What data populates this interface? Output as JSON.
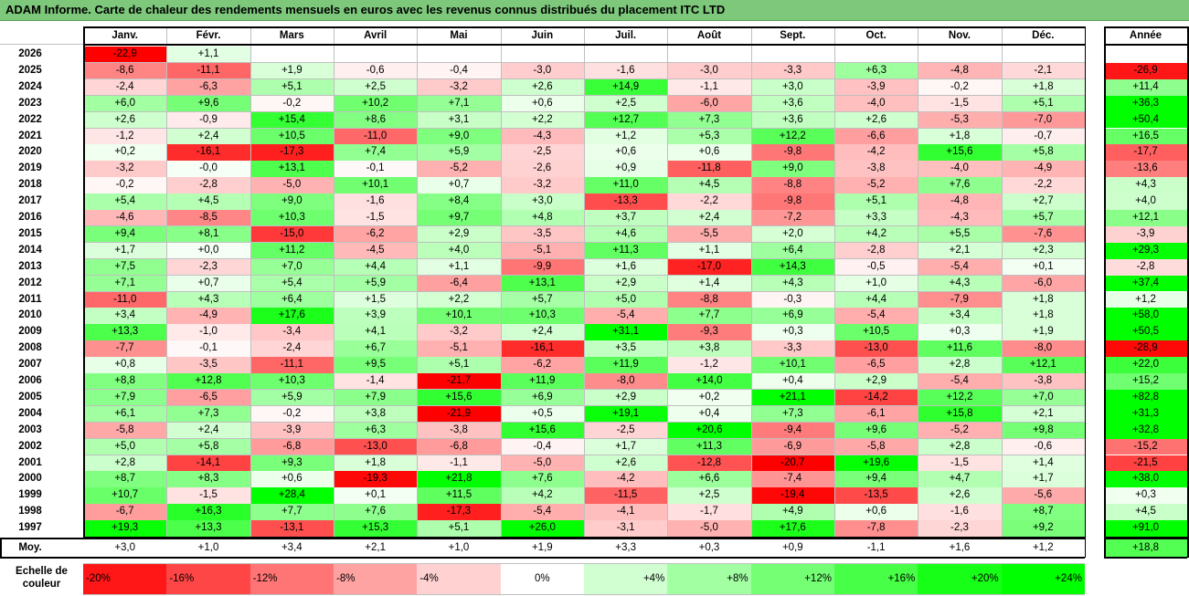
{
  "title": "ADAM Informe. Carte de chaleur des rendements mensuels en euros avec les revenus connus distribués du placement ITC LTD",
  "colors": {
    "title_bg": "#7dc87b",
    "neg_max": "#ff0000",
    "pos_max": "#00ff00",
    "neutral": "#ffffff"
  },
  "chart_data": {
    "type": "heatmap",
    "title": "ADAM Informe. Carte de chaleur des rendements mensuels en euros avec les revenus connus distribués du placement ITC LTD",
    "months": [
      "Janv.",
      "Févr.",
      "Mars",
      "Avril",
      "Mai",
      "Juin",
      "Juil.",
      "Août",
      "Sept.",
      "Oct.",
      "Nov.",
      "Déc."
    ],
    "year_header": "Année",
    "rows": [
      {
        "year": "2026",
        "values": [
          "-22,9",
          "+1,1",
          "",
          "",
          "",
          "",
          "",
          "",
          "",
          "",
          "",
          ""
        ],
        "annual": ""
      },
      {
        "year": "2025",
        "values": [
          "-8,6",
          "-11,1",
          "+1,9",
          "-0,6",
          "-0,4",
          "-3,0",
          "-1,6",
          "-3,0",
          "-3,3",
          "+6,3",
          "-4,8",
          "-2,1"
        ],
        "annual": "-26,9"
      },
      {
        "year": "2024",
        "values": [
          "-2,4",
          "-6,3",
          "+5,1",
          "+2,5",
          "-3,2",
          "+2,6",
          "+14,9",
          "-1,1",
          "+3,0",
          "-3,9",
          "-0,2",
          "+1,8"
        ],
        "annual": "+11,4"
      },
      {
        "year": "2023",
        "values": [
          "+6,0",
          "+9,6",
          "-0,2",
          "+10,2",
          "+7,1",
          "+0,6",
          "+2,5",
          "-6,0",
          "+3,6",
          "-4,0",
          "-1,5",
          "+5,1"
        ],
        "annual": "+36,3"
      },
      {
        "year": "2022",
        "values": [
          "+2,6",
          "-0,9",
          "+15,4",
          "+8,6",
          "+3,1",
          "+2,2",
          "+12,7",
          "+7,3",
          "+3,6",
          "+2,6",
          "-5,3",
          "-7,0"
        ],
        "annual": "+50,4"
      },
      {
        "year": "2021",
        "values": [
          "-1,2",
          "+2,4",
          "+10,5",
          "-11,0",
          "+9,0",
          "-4,3",
          "+1,2",
          "+5,3",
          "+12,2",
          "-6,6",
          "+1,8",
          "-0,7"
        ],
        "annual": "+16,5"
      },
      {
        "year": "2020",
        "values": [
          "+0,2",
          "-16,1",
          "-17,3",
          "+7,4",
          "+5,9",
          "-2,5",
          "+0,6",
          "+0,6",
          "-9,8",
          "-4,2",
          "+15,6",
          "+5,8"
        ],
        "annual": "-17,7"
      },
      {
        "year": "2019",
        "values": [
          "-3,2",
          "-0,0",
          "+13,1",
          "-0,1",
          "-5,2",
          "-2,6",
          "+0,9",
          "-11,8",
          "+9,0",
          "-3,8",
          "-4,0",
          "-4,9"
        ],
        "annual": "-13,6"
      },
      {
        "year": "2018",
        "values": [
          "-0,2",
          "-2,8",
          "-5,0",
          "+10,1",
          "+0,7",
          "-3,2",
          "+11,0",
          "+4,5",
          "-8,8",
          "-5,2",
          "+7,6",
          "-2,2"
        ],
        "annual": "+4,3"
      },
      {
        "year": "2017",
        "values": [
          "+5,4",
          "+4,5",
          "+9,0",
          "-1,6",
          "+8,4",
          "+3,0",
          "-13,3",
          "-2,2",
          "-9,8",
          "+5,1",
          "-4,8",
          "+2,7"
        ],
        "annual": "+4,0"
      },
      {
        "year": "2016",
        "values": [
          "-4,6",
          "-8,5",
          "+10,3",
          "-1,5",
          "+9,7",
          "+4,8",
          "+3,7",
          "+2,4",
          "-7,2",
          "+3,3",
          "-4,3",
          "+5,7"
        ],
        "annual": "+12,1"
      },
      {
        "year": "2015",
        "values": [
          "+9,4",
          "+8,1",
          "-15,0",
          "-6,2",
          "+2,9",
          "-3,5",
          "+4,6",
          "-5,5",
          "+2,0",
          "+4,2",
          "+5,5",
          "-7,6"
        ],
        "annual": "-3,9"
      },
      {
        "year": "2014",
        "values": [
          "+1,7",
          "+0,0",
          "+11,2",
          "-4,5",
          "+4,0",
          "-5,1",
          "+11,3",
          "+1,1",
          "+6,4",
          "-2,8",
          "+2,1",
          "+2,3"
        ],
        "annual": "+29,3"
      },
      {
        "year": "2013",
        "values": [
          "+7,5",
          "-2,3",
          "+7,0",
          "+4,4",
          "+1,1",
          "-9,9",
          "+1,6",
          "-17,0",
          "+14,3",
          "-0,5",
          "-5,4",
          "+0,1"
        ],
        "annual": "-2,8"
      },
      {
        "year": "2012",
        "values": [
          "+7,1",
          "+0,7",
          "+5,4",
          "+5,9",
          "-6,4",
          "+13,1",
          "+2,9",
          "+1,4",
          "+4,3",
          "+1,0",
          "+4,3",
          "-6,0"
        ],
        "annual": "+37,4"
      },
      {
        "year": "2011",
        "values": [
          "-11,0",
          "+4,3",
          "+6,4",
          "+1,5",
          "+2,2",
          "+5,7",
          "+5,0",
          "-8,8",
          "-0,3",
          "+4,4",
          "-7,9",
          "+1,8"
        ],
        "annual": "+1,2"
      },
      {
        "year": "2010",
        "values": [
          "+3,4",
          "-4,9",
          "+17,6",
          "+3,9",
          "+10,1",
          "+10,3",
          "-5,4",
          "+7,7",
          "+6,9",
          "-5,4",
          "+3,4",
          "+1,8"
        ],
        "annual": "+58,0"
      },
      {
        "year": "2009",
        "values": [
          "+13,3",
          "-1,0",
          "-3,4",
          "+4,1",
          "-3,2",
          "+2,4",
          "+31,1",
          "-9,3",
          "+0,3",
          "+10,5",
          "+0,3",
          "+1,9"
        ],
        "annual": "+50,5"
      },
      {
        "year": "2008",
        "values": [
          "-7,7",
          "-0,1",
          "-2,4",
          "+6,7",
          "-5,1",
          "-16,1",
          "+3,5",
          "+3,8",
          "-3,3",
          "-13,0",
          "+11,6",
          "-8,0"
        ],
        "annual": "-28,9"
      },
      {
        "year": "2007",
        "values": [
          "+0,8",
          "-3,5",
          "-11,1",
          "+9,5",
          "+5,1",
          "-6,2",
          "+11,9",
          "-1,2",
          "+10,1",
          "-6,5",
          "+2,8",
          "+12,1"
        ],
        "annual": "+22,0"
      },
      {
        "year": "2006",
        "values": [
          "+8,8",
          "+12,8",
          "+10,3",
          "-1,4",
          "-21,7",
          "+11,9",
          "-8,0",
          "+14,0",
          "+0,4",
          "+2,9",
          "-5,4",
          "-3,8"
        ],
        "annual": "+15,2"
      },
      {
        "year": "2005",
        "values": [
          "+7,9",
          "-6,5",
          "+5,9",
          "+7,9",
          "+15,6",
          "+6,9",
          "+2,9",
          "+0,2",
          "+21,1",
          "-14,2",
          "+12,2",
          "+7,0"
        ],
        "annual": "+82,8"
      },
      {
        "year": "2004",
        "values": [
          "+6,1",
          "+7,3",
          "-0,2",
          "+3,8",
          "-21,9",
          "+0,5",
          "+19,1",
          "+0,4",
          "+7,3",
          "-6,1",
          "+15,8",
          "+2,1"
        ],
        "annual": "+31,3"
      },
      {
        "year": "2003",
        "values": [
          "-5,8",
          "+2,4",
          "-3,9",
          "+6,3",
          "-3,8",
          "+15,6",
          "-2,5",
          "+20,6",
          "-9,4",
          "+9,6",
          "-5,2",
          "+9,8"
        ],
        "annual": "+32,8"
      },
      {
        "year": "2002",
        "values": [
          "+5,0",
          "+5,8",
          "-6,8",
          "-13,0",
          "-6,8",
          "-0,4",
          "+1,7",
          "+11,3",
          "-6,9",
          "-5,8",
          "+2,8",
          "-0,6"
        ],
        "annual": "-15,2"
      },
      {
        "year": "2001",
        "values": [
          "+2,8",
          "-14,1",
          "+9,3",
          "+1,8",
          "-1,1",
          "-5,0",
          "+2,6",
          "-12,8",
          "-20,7",
          "+19,6",
          "-1,5",
          "+1,4"
        ],
        "annual": "-21,5"
      },
      {
        "year": "2000",
        "values": [
          "+8,7",
          "+8,3",
          "+0,6",
          "-19,3",
          "+21,8",
          "+7,6",
          "-4,2",
          "+6,6",
          "-7,4",
          "+9,4",
          "+4,7",
          "+1,7"
        ],
        "annual": "+38,0"
      },
      {
        "year": "1999",
        "values": [
          "+10,7",
          "-1,5",
          "+28,4",
          "+0,1",
          "+11,5",
          "+4,2",
          "-11,5",
          "+2,5",
          "-19,4",
          "-13,5",
          "+2,6",
          "-5,6"
        ],
        "annual": "+0,3"
      },
      {
        "year": "1998",
        "values": [
          "-6,7",
          "+16,3",
          "+7,7",
          "+7,6",
          "-17,3",
          "-5,4",
          "-4,1",
          "-1,7",
          "+4,9",
          "+0,6",
          "-1,6",
          "+8,7"
        ],
        "annual": "+4,5"
      },
      {
        "year": "1997",
        "values": [
          "+19,3",
          "+13,3",
          "-13,1",
          "+15,3",
          "+5,1",
          "+26,0",
          "-3,1",
          "-5,0",
          "+17,6",
          "-7,8",
          "-2,3",
          "+9,2"
        ],
        "annual": "+91,0"
      }
    ],
    "average": {
      "label": "Moy.",
      "values": [
        "+3,0",
        "+1,0",
        "+3,4",
        "+2,1",
        "+1,0",
        "+1,9",
        "+3,3",
        "+0,3",
        "+0,9",
        "-1,1",
        "+1,6",
        "+1,2"
      ],
      "annual": "+18,8"
    },
    "scale": {
      "label_line1": "Echelle de",
      "label_line2": "couleur",
      "items": [
        {
          "label": "-20%",
          "value": -20
        },
        {
          "label": "-16%",
          "value": -16
        },
        {
          "label": "-12%",
          "value": -12
        },
        {
          "label": "-8%",
          "value": -8
        },
        {
          "label": "-4%",
          "value": -4
        },
        {
          "label": "0%",
          "value": 0
        },
        {
          "label": "+4%",
          "value": 4
        },
        {
          "label": "+8%",
          "value": 8
        },
        {
          "label": "+12%",
          "value": 12
        },
        {
          "label": "+16%",
          "value": 16
        },
        {
          "label": "+20%",
          "value": 20
        },
        {
          "label": "+24%",
          "value": 24
        }
      ]
    }
  }
}
